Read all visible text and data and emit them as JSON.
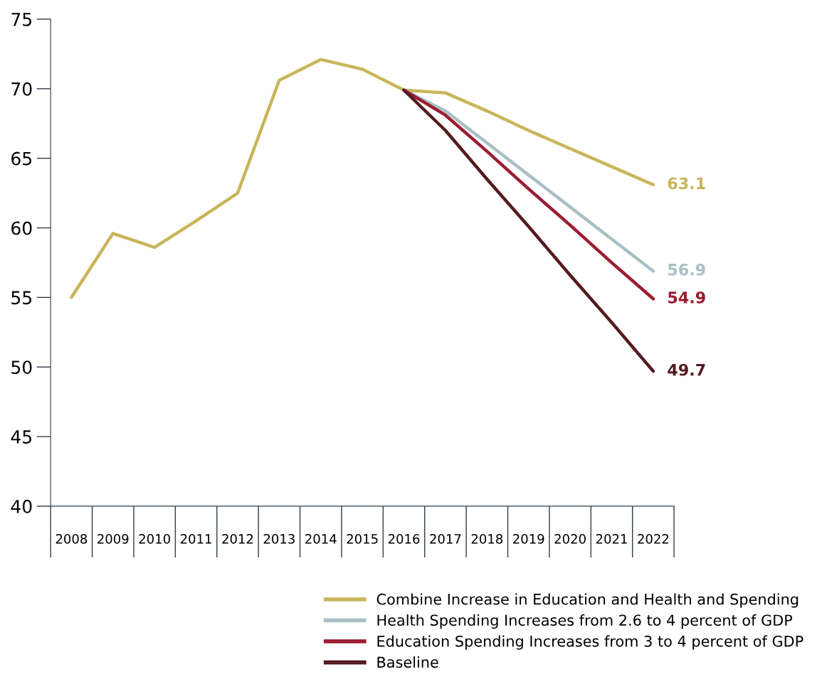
{
  "chart_data": {
    "type": "line",
    "categories": [
      "2008",
      "2009",
      "2010",
      "2011",
      "2012",
      "2013",
      "2014",
      "2015",
      "2016",
      "2017",
      "2018",
      "2019",
      "2020",
      "2021",
      "2022"
    ],
    "ylim": [
      40,
      75
    ],
    "yticks": [
      40,
      45,
      50,
      55,
      60,
      65,
      70,
      75
    ],
    "grid": false,
    "legend": "bottom right",
    "marker": "none",
    "line_style": "solid",
    "series": [
      {
        "name": "Combine Increase in Education and Health and Spending",
        "color": "#c9b55a",
        "values": [
          55,
          59.6,
          58.6,
          60.5,
          62.5,
          70.6,
          72.1,
          71.4,
          69.9,
          69.7,
          68.4,
          67.0,
          65.7,
          64.4,
          63.1
        ],
        "value_labels": [
          null,
          null,
          null,
          null,
          null,
          null,
          null,
          null,
          null,
          null,
          null,
          null,
          null,
          null,
          "63.1"
        ]
      },
      {
        "name": "Health Spending Increases from 2.6 to 4 percent of GDP",
        "color": "#a9bfc3",
        "values": [
          null,
          null,
          null,
          null,
          null,
          null,
          null,
          null,
          69.9,
          68.4,
          66.1,
          63.8,
          61.5,
          59.2,
          56.9
        ],
        "value_labels": [
          null,
          null,
          null,
          null,
          null,
          null,
          null,
          null,
          null,
          null,
          null,
          null,
          null,
          null,
          "56.9"
        ]
      },
      {
        "name": "Education Spending Increases from 3 to 4 percent of GDP",
        "color": "#9b1c31",
        "values": [
          null,
          null,
          null,
          null,
          null,
          null,
          null,
          null,
          69.9,
          68.1,
          65.5,
          62.8,
          60.2,
          57.5,
          54.9
        ],
        "value_labels": [
          null,
          null,
          null,
          null,
          null,
          null,
          null,
          null,
          null,
          null,
          null,
          null,
          null,
          null,
          "54.9"
        ]
      },
      {
        "name": "Baseline",
        "color": "#541a1f",
        "values": [
          null,
          null,
          null,
          null,
          null,
          null,
          null,
          null,
          69.9,
          67.0,
          63.5,
          60.1,
          56.6,
          53.2,
          49.7
        ],
        "value_labels": [
          null,
          null,
          null,
          null,
          null,
          null,
          null,
          null,
          null,
          null,
          null,
          null,
          null,
          null,
          "49.7"
        ]
      }
    ]
  }
}
